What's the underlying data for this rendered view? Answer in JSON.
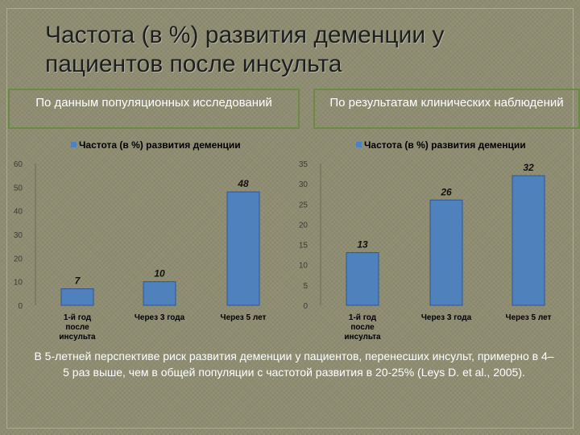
{
  "title": "Частота (в %) развития деменции у пациентов после инсульта",
  "panels": {
    "left_label": "По данным популяционных исследований",
    "right_label": "По результатам клинических наблюдений"
  },
  "footer": "В 5-летней перспективе риск развития деменции у пациентов, перенесших инсульт, примерно в 4–5 раз выше, чем в общей популяции с частотой развития в 20-25% (Leys D. et al., 2005).",
  "colors": {
    "bar": "#4f81bd",
    "bar_dark": "#2f5597",
    "accent_border": "#6c8a45"
  },
  "chart_data": [
    {
      "type": "bar",
      "title": "",
      "legend": "Частота (в %) развития деменции",
      "legend_position": "top",
      "categories": [
        "1-й год после инсульта",
        "Через 3 года",
        "Через 5 лет"
      ],
      "values": [
        7,
        10,
        48
      ],
      "data_labels": [
        "7",
        "10",
        "48"
      ],
      "ylim": [
        0,
        60
      ],
      "yticks": [
        "0",
        "10",
        "20",
        "30",
        "40",
        "50",
        "60"
      ],
      "xlabel": "",
      "ylabel": "",
      "grid": false
    },
    {
      "type": "bar",
      "title": "",
      "legend": "Частота (в %) развития деменции",
      "legend_position": "top",
      "categories": [
        "1-й год после инсульта",
        "Через 3 года",
        "Через 5 лет"
      ],
      "values": [
        13,
        26,
        32
      ],
      "data_labels": [
        "13",
        "26",
        "32"
      ],
      "ylim": [
        0,
        35
      ],
      "yticks": [
        "0",
        "5",
        "10",
        "15",
        "20",
        "25",
        "30",
        "35"
      ],
      "xlabel": "",
      "ylabel": "",
      "grid": false
    }
  ]
}
